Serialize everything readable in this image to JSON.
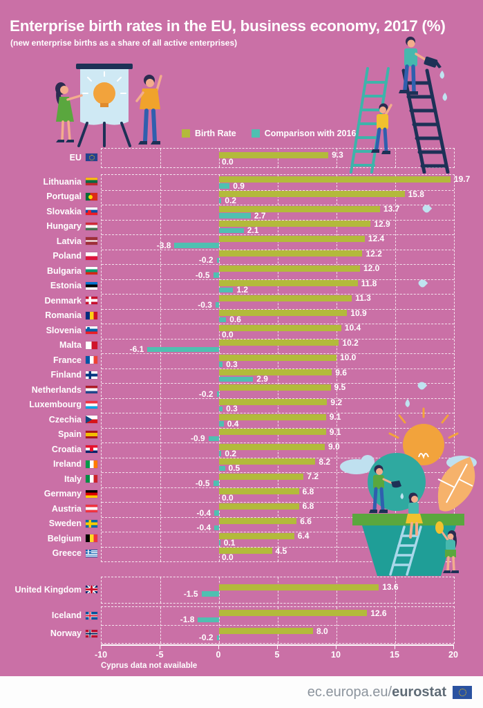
{
  "page": {
    "title": "Enterprise birth rates in the EU, business economy, 2017 (%)",
    "subtitle": "(new enterprise births as a share of all active enterprises)",
    "note": "Cyprus data not available",
    "footer": {
      "url_regular": "ec.europa.eu/",
      "url_bold": "eurostat"
    },
    "colors": {
      "background": "#ca70a6",
      "birth_rate_bar": "#b3ba3b",
      "comparison_bar": "#4fc0b1"
    }
  },
  "chart_data": {
    "type": "bar",
    "orientation": "horizontal",
    "unit": "%",
    "title": "Enterprise birth rates in the EU, business economy, 2017 (%)",
    "subtitle": "(new enterprise births as a share of all active enterprises)",
    "legend": [
      "Birth Rate",
      "Comparison with 2016"
    ],
    "series_colors": {
      "Birth Rate": "#b3ba3b",
      "Comparison with 2016": "#4fc0b1"
    },
    "x_axis": {
      "min": -10,
      "max": 20,
      "ticks": [
        -10,
        -5,
        0,
        5,
        10,
        15,
        20
      ],
      "gridlines": true
    },
    "note": "Cyprus data not available",
    "groups": {
      "eu": [
        {
          "name": "EU",
          "birth_rate": 9.3,
          "comparison_2016": 0.0,
          "flag": {
            "t": "eu"
          }
        }
      ],
      "members": [
        {
          "name": "Lithuania",
          "birth_rate": 19.7,
          "comparison_2016": 0.9,
          "flag": {
            "t": "h",
            "s": [
              [
                "#FDB913",
                0,
                34
              ],
              [
                "#006A44",
                34,
                67
              ],
              [
                "#C1272D",
                67,
                100
              ]
            ]
          }
        },
        {
          "name": "Portugal",
          "birth_rate": 15.8,
          "comparison_2016": 0.2,
          "flag": {
            "t": "v",
            "s": [
              [
                "#046A38",
                0,
                38
              ],
              [
                "#DA291C",
                38,
                100
              ]
            ],
            "emblem": {
              "c": "#FFD700",
              "l": 24,
              "t": 27,
              "w": 6,
              "h": 6,
              "r": 50
            }
          }
        },
        {
          "name": "Slovakia",
          "birth_rate": 13.7,
          "comparison_2016": 2.7,
          "flag": {
            "t": "h",
            "s": [
              [
                "#FFFFFF",
                0,
                34
              ],
              [
                "#0B4EA2",
                34,
                67
              ],
              [
                "#EE1C25",
                67,
                100
              ]
            ],
            "emblem": {
              "c": "#EE1C25",
              "l": 16,
              "t": 30,
              "w": 5,
              "h": 6,
              "r": 25
            }
          }
        },
        {
          "name": "Hungary",
          "birth_rate": 12.9,
          "comparison_2016": 2.1,
          "flag": {
            "t": "h",
            "s": [
              [
                "#CE2939",
                0,
                34
              ],
              [
                "#FFFFFF",
                34,
                67
              ],
              [
                "#477050",
                67,
                100
              ]
            ]
          }
        },
        {
          "name": "Latvia",
          "birth_rate": 12.4,
          "comparison_2016": -3.8,
          "flag": {
            "t": "h",
            "s": [
              [
                "#9E3039",
                0,
                40
              ],
              [
                "#FFFFFF",
                40,
                60
              ],
              [
                "#9E3039",
                60,
                100
              ]
            ]
          }
        },
        {
          "name": "Poland",
          "birth_rate": 12.2,
          "comparison_2016": -0.2,
          "flag": {
            "t": "h",
            "s": [
              [
                "#FFFFFF",
                0,
                50
              ],
              [
                "#DC143C",
                50,
                100
              ]
            ]
          }
        },
        {
          "name": "Bulgaria",
          "birth_rate": 12.0,
          "comparison_2016": -0.5,
          "flag": {
            "t": "h",
            "s": [
              [
                "#FFFFFF",
                0,
                34
              ],
              [
                "#00966E",
                34,
                67
              ],
              [
                "#D62612",
                67,
                100
              ]
            ]
          }
        },
        {
          "name": "Estonia",
          "birth_rate": 11.8,
          "comparison_2016": 1.2,
          "flag": {
            "t": "h",
            "s": [
              [
                "#0072CE",
                0,
                34
              ],
              [
                "#000000",
                34,
                67
              ],
              [
                "#FFFFFF",
                67,
                100
              ]
            ]
          }
        },
        {
          "name": "Denmark",
          "birth_rate": 11.3,
          "comparison_2016": -0.3,
          "flag": {
            "t": "nordic",
            "bg": "#C8102E",
            "cross": "#FFFFFF"
          }
        },
        {
          "name": "Romania",
          "birth_rate": 10.9,
          "comparison_2016": 0.6,
          "flag": {
            "t": "v",
            "s": [
              [
                "#002B7F",
                0,
                34
              ],
              [
                "#FCD116",
                34,
                67
              ],
              [
                "#CE1126",
                67,
                100
              ]
            ]
          }
        },
        {
          "name": "Slovenia",
          "birth_rate": 10.4,
          "comparison_2016": 0.0,
          "flag": {
            "t": "h",
            "s": [
              [
                "#FFFFFF",
                0,
                34
              ],
              [
                "#005DA4",
                34,
                67
              ],
              [
                "#ED1C24",
                67,
                100
              ]
            ],
            "emblem": {
              "c": "#005DA4",
              "l": 14,
              "t": 9,
              "w": 4,
              "h": 5,
              "r": 25
            }
          }
        },
        {
          "name": "Malta",
          "birth_rate": 10.2,
          "comparison_2016": -6.1,
          "flag": {
            "t": "v",
            "s": [
              [
                "#FFFFFF",
                0,
                50
              ],
              [
                "#CF142B",
                50,
                100
              ]
            ]
          }
        },
        {
          "name": "France",
          "birth_rate": 10.0,
          "comparison_2016": 0.3,
          "flag": {
            "t": "v",
            "s": [
              [
                "#0055A4",
                0,
                34
              ],
              [
                "#FFFFFF",
                34,
                67
              ],
              [
                "#EF4135",
                67,
                100
              ]
            ]
          }
        },
        {
          "name": "Finland",
          "birth_rate": 9.6,
          "comparison_2016": 2.9,
          "flag": {
            "t": "nordic",
            "bg": "#FFFFFF",
            "cross": "#003580"
          }
        },
        {
          "name": "Netherlands",
          "birth_rate": 9.5,
          "comparison_2016": -0.2,
          "flag": {
            "t": "h",
            "s": [
              [
                "#AE1C28",
                0,
                34
              ],
              [
                "#FFFFFF",
                34,
                67
              ],
              [
                "#21468B",
                67,
                100
              ]
            ]
          }
        },
        {
          "name": "Luxembourg",
          "birth_rate": 9.2,
          "comparison_2016": 0.3,
          "flag": {
            "t": "h",
            "s": [
              [
                "#EF3340",
                0,
                34
              ],
              [
                "#FFFFFF",
                34,
                67
              ],
              [
                "#00A3E0",
                67,
                100
              ]
            ]
          }
        },
        {
          "name": "Czechia",
          "birth_rate": 9.1,
          "comparison_2016": 0.4,
          "flag": {
            "t": "czechia",
            "top": "#FFFFFF",
            "bottom": "#D7141A",
            "tri": "#11457E"
          }
        },
        {
          "name": "Spain",
          "birth_rate": 9.1,
          "comparison_2016": -0.9,
          "flag": {
            "t": "h",
            "s": [
              [
                "#AA151B",
                0,
                27
              ],
              [
                "#F1BF00",
                27,
                73
              ],
              [
                "#AA151B",
                73,
                100
              ]
            ]
          }
        },
        {
          "name": "Croatia",
          "birth_rate": 9.0,
          "comparison_2016": 0.2,
          "flag": {
            "t": "h",
            "s": [
              [
                "#E8112D",
                0,
                34
              ],
              [
                "#FFFFFF",
                34,
                67
              ],
              [
                "#012169",
                67,
                100
              ]
            ],
            "emblem": {
              "c": "#E8112D",
              "l": 38,
              "t": 27,
              "w": 5,
              "h": 6,
              "r": 25
            }
          }
        },
        {
          "name": "Ireland",
          "birth_rate": 8.2,
          "comparison_2016": 0.5,
          "flag": {
            "t": "v",
            "s": [
              [
                "#009A49",
                0,
                34
              ],
              [
                "#FFFFFF",
                34,
                67
              ],
              [
                "#FF7900",
                67,
                100
              ]
            ]
          }
        },
        {
          "name": "Italy",
          "birth_rate": 7.2,
          "comparison_2016": -0.5,
          "flag": {
            "t": "v",
            "s": [
              [
                "#008C45",
                0,
                34
              ],
              [
                "#FFFFFF",
                34,
                67
              ],
              [
                "#CD212A",
                67,
                100
              ]
            ]
          }
        },
        {
          "name": "Germany",
          "birth_rate": 6.8,
          "comparison_2016": 0.0,
          "flag": {
            "t": "h",
            "s": [
              [
                "#000000",
                0,
                34
              ],
              [
                "#DD0000",
                34,
                67
              ],
              [
                "#FFCE00",
                67,
                100
              ]
            ]
          }
        },
        {
          "name": "Austria",
          "birth_rate": 6.8,
          "comparison_2016": -0.4,
          "flag": {
            "t": "h",
            "s": [
              [
                "#EF3340",
                0,
                34
              ],
              [
                "#FFFFFF",
                34,
                67
              ],
              [
                "#EF3340",
                67,
                100
              ]
            ]
          }
        },
        {
          "name": "Sweden",
          "birth_rate": 6.6,
          "comparison_2016": -0.4,
          "flag": {
            "t": "nordic",
            "bg": "#006AA7",
            "cross": "#FECC02"
          }
        },
        {
          "name": "Belgium",
          "birth_rate": 6.4,
          "comparison_2016": 0.1,
          "flag": {
            "t": "v",
            "s": [
              [
                "#000000",
                0,
                34
              ],
              [
                "#FDDA24",
                34,
                67
              ],
              [
                "#EF3340",
                67,
                100
              ]
            ]
          }
        },
        {
          "name": "Greece",
          "birth_rate": 4.5,
          "comparison_2016": 0.0,
          "flag": {
            "t": "greece",
            "blue": "#0D5EAF",
            "white": "#FFFFFF"
          }
        }
      ],
      "uk": [
        {
          "name": "United Kingdom",
          "birth_rate": 13.6,
          "comparison_2016": -1.5,
          "flag": {
            "t": "uk",
            "blue": "#012169",
            "red": "#C8102E",
            "white": "#FFFFFF"
          }
        }
      ],
      "efta": [
        {
          "name": "Iceland",
          "birth_rate": 12.6,
          "comparison_2016": -1.8,
          "flag": {
            "t": "nordic",
            "bg": "#02529C",
            "cross": "#FFFFFF",
            "inner": "#DC1E35"
          }
        },
        {
          "name": "Norway",
          "birth_rate": 8.0,
          "comparison_2016": -0.2,
          "flag": {
            "t": "nordic",
            "bg": "#BA0C2F",
            "cross": "#FFFFFF",
            "inner": "#00205B"
          }
        }
      ]
    }
  }
}
